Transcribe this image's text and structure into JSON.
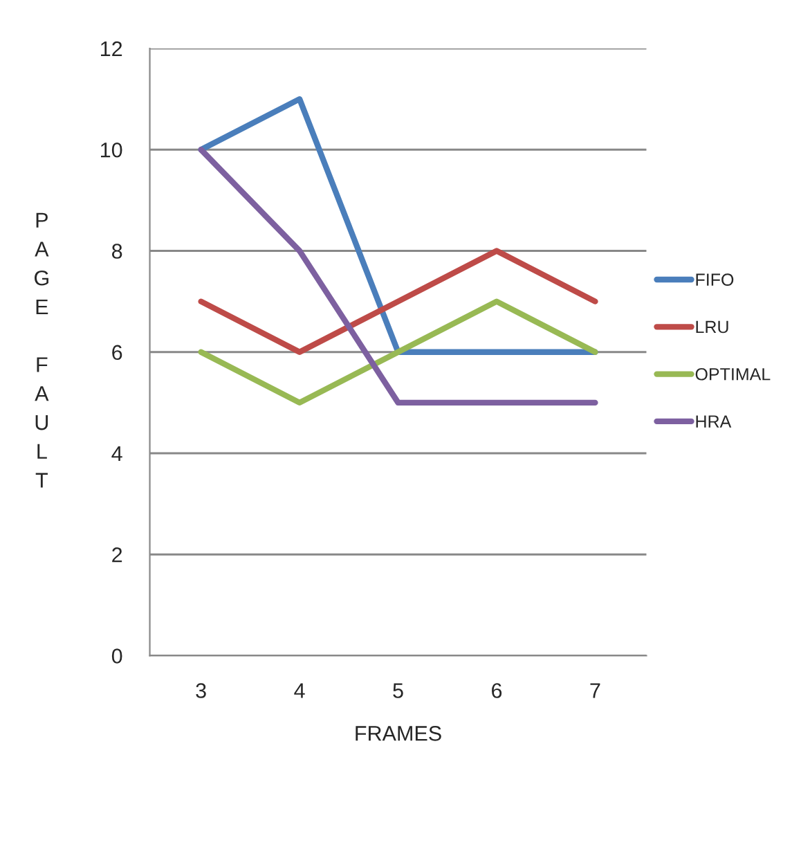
{
  "chart_data": {
    "type": "line",
    "xlabel": "FRAMES",
    "ylabel": "PAGE FAULT",
    "categories": [
      "3",
      "4",
      "5",
      "6",
      "7"
    ],
    "series": [
      {
        "name": "FIFO",
        "color": "#4a7ebb",
        "values": [
          10,
          11,
          6,
          6,
          6
        ]
      },
      {
        "name": "LRU",
        "color": "#be4b48",
        "values": [
          7,
          6,
          7,
          8,
          7
        ]
      },
      {
        "name": "OPTIMAL",
        "color": "#98b954",
        "values": [
          6,
          5,
          6,
          7,
          6
        ]
      },
      {
        "name": "HRA",
        "color": "#7d60a0",
        "values": [
          10,
          8,
          5,
          5,
          5
        ]
      }
    ],
    "ylim": [
      0,
      12
    ],
    "yticks": [
      0,
      2,
      4,
      6,
      8,
      10,
      12
    ],
    "grid": "y",
    "legend": "right",
    "marker": "none",
    "line_style": "solid"
  }
}
